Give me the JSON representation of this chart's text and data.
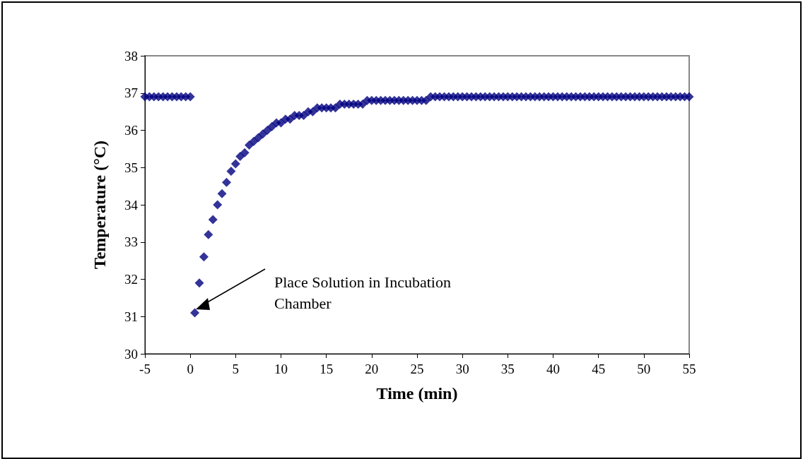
{
  "chart_data": {
    "type": "scatter",
    "xlabel": "Time (min)",
    "ylabel": "Temperature (°C)",
    "marker": "diamond",
    "grid": false,
    "x": [
      -5,
      -4.5,
      -4,
      -3.5,
      -3,
      -2.5,
      -2,
      -1.5,
      -1,
      -0.5,
      0,
      0.5,
      1,
      1.5,
      2,
      2.5,
      3,
      3.5,
      4,
      4.5,
      5,
      5.5,
      6,
      6.5,
      7,
      7.5,
      8,
      8.5,
      9,
      9.5,
      10,
      10.5,
      11,
      11.5,
      12,
      12.5,
      13,
      13.5,
      14,
      14.5,
      15,
      15.5,
      16,
      16.5,
      17,
      17.5,
      18,
      18.5,
      19,
      19.5,
      20,
      20.5,
      21,
      21.5,
      22,
      22.5,
      23,
      23.5,
      24,
      24.5,
      25,
      25.5,
      26,
      26.5,
      27,
      27.5,
      28,
      28.5,
      29,
      29.5,
      30,
      30.5,
      31,
      31.5,
      32,
      32.5,
      33,
      33.5,
      34,
      34.5,
      35,
      35.5,
      36,
      36.5,
      37,
      37.5,
      38,
      38.5,
      39,
      39.5,
      40,
      40.5,
      41,
      41.5,
      42,
      42.5,
      43,
      43.5,
      44,
      44.5,
      45,
      45.5,
      46,
      46.5,
      47,
      47.5,
      48,
      48.5,
      49,
      49.5,
      50,
      50.5,
      51,
      51.5,
      52,
      52.5,
      53,
      53.5,
      54,
      54.5,
      55
    ],
    "series": [
      {
        "color": "#000080",
        "values": [
          36.9,
          36.9,
          36.9,
          36.9,
          36.9,
          36.9,
          36.9,
          36.9,
          36.9,
          36.9,
          36.9,
          31.1,
          31.9,
          32.6,
          33.2,
          33.6,
          34.0,
          34.3,
          34.6,
          34.9,
          35.1,
          35.3,
          35.4,
          35.6,
          35.7,
          35.8,
          35.9,
          36.0,
          36.1,
          36.2,
          36.2,
          36.3,
          36.3,
          36.4,
          36.4,
          36.4,
          36.5,
          36.5,
          36.6,
          36.6,
          36.6,
          36.6,
          36.6,
          36.7,
          36.7,
          36.7,
          36.7,
          36.7,
          36.7,
          36.8,
          36.8,
          36.8,
          36.8,
          36.8,
          36.8,
          36.8,
          36.8,
          36.8,
          36.8,
          36.8,
          36.8,
          36.8,
          36.8,
          36.9,
          36.9,
          36.9,
          36.9,
          36.9,
          36.9,
          36.9,
          36.9,
          36.9,
          36.9,
          36.9,
          36.9,
          36.9,
          36.9,
          36.9,
          36.9,
          36.9,
          36.9,
          36.9,
          36.9,
          36.9,
          36.9,
          36.9,
          36.9,
          36.9,
          36.9,
          36.9,
          36.9,
          36.9,
          36.9,
          36.9,
          36.9,
          36.9,
          36.9,
          36.9,
          36.9,
          36.9,
          36.9,
          36.9,
          36.9,
          36.9,
          36.9,
          36.9,
          36.9,
          36.9,
          36.9,
          36.9,
          36.9,
          36.9,
          36.9,
          36.9,
          36.9,
          36.9,
          36.9,
          36.9,
          36.9,
          36.9,
          36.9
        ]
      }
    ],
    "xlim": [
      -5,
      55
    ],
    "xticks": [
      -5,
      0,
      5,
      10,
      15,
      20,
      25,
      30,
      35,
      40,
      45,
      50,
      55
    ],
    "ylim": [
      30,
      38
    ],
    "yticks": [
      30,
      31,
      32,
      33,
      34,
      35,
      36,
      37,
      38
    ],
    "annotations": [
      "Place Solution in Incubation Chamber"
    ]
  }
}
